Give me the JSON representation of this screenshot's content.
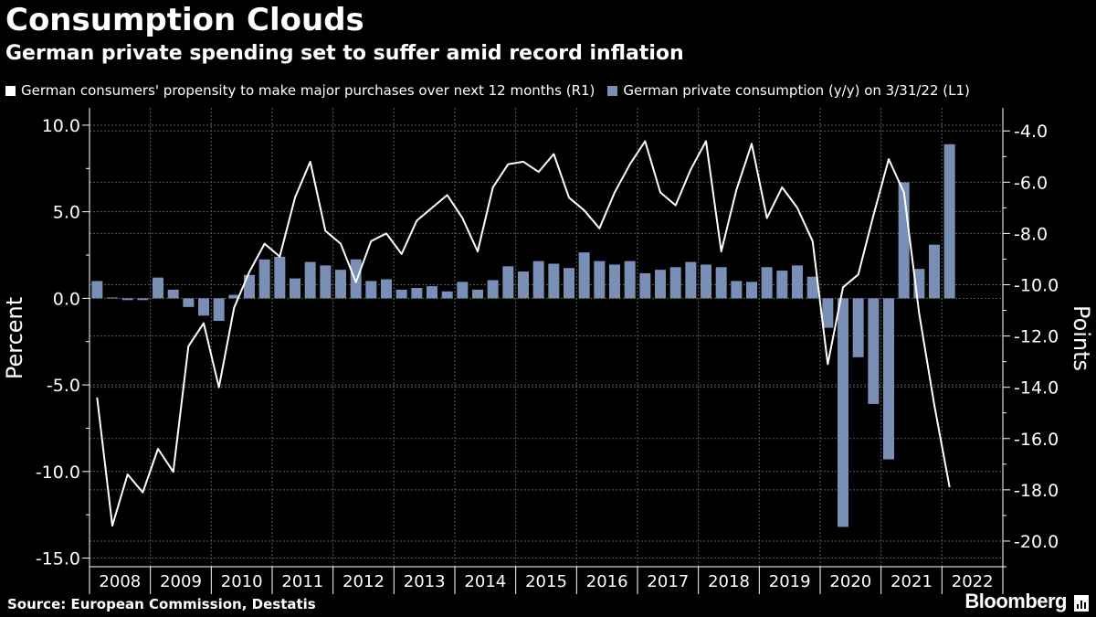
{
  "title": "Consumption Clouds",
  "subtitle": "German private spending set to suffer amid record inflation",
  "legend": [
    {
      "label": "German consumers' propensity to make major purchases over next 12 months (R1)",
      "color": "#ffffff"
    },
    {
      "label": "German private consumption (y/y) on 3/31/22 (L1)",
      "color": "#7a8fb5"
    }
  ],
  "source": "Source: European Commission, Destatis",
  "brand": "Bloomberg",
  "colors": {
    "bar": "#7a8fb5",
    "line": "#ffffff",
    "grid": "#5a5a5a",
    "background": "#000000"
  },
  "chart_data": {
    "type": "bar+line",
    "years": [
      "2008",
      "2009",
      "2010",
      "2011",
      "2012",
      "2013",
      "2014",
      "2015",
      "2016",
      "2017",
      "2018",
      "2019",
      "2020",
      "2021",
      "2022"
    ],
    "left_axis": {
      "label": "Percent",
      "ylim": [
        -15.5,
        11
      ],
      "ticks": [
        10.0,
        5.0,
        0.0,
        -5.0,
        -10.0,
        -15.0
      ],
      "tick_labels": [
        "10.0",
        "5.0",
        "0.0",
        "-5.0",
        "-10.0",
        "-15.0"
      ]
    },
    "right_axis": {
      "label": "Points",
      "ylim": [
        -21,
        -3.1
      ],
      "ticks": [
        -4,
        -6,
        -8,
        -10,
        -12,
        -14,
        -16,
        -18,
        -20
      ],
      "tick_labels": [
        "-4.0",
        "-6.0",
        "-8.0",
        "-10.0",
        "-12.0",
        "-14.0",
        "-16.0",
        "-18.0",
        "-20.0"
      ]
    },
    "series": [
      {
        "name": "German private consumption (y/y) on 3/31/22 (L1)",
        "axis": "left",
        "kind": "bar",
        "start": "2008Q1",
        "values": [
          1.0,
          0.05,
          -0.1,
          -0.1,
          1.2,
          0.5,
          -0.5,
          -1.0,
          -1.3,
          0.2,
          1.35,
          2.25,
          2.4,
          1.15,
          2.1,
          1.9,
          1.65,
          2.25,
          1.0,
          1.1,
          0.5,
          0.6,
          0.7,
          0.4,
          0.95,
          0.5,
          1.05,
          1.85,
          1.55,
          2.15,
          2.0,
          1.75,
          2.65,
          2.15,
          1.95,
          2.15,
          1.45,
          1.65,
          1.8,
          2.1,
          1.95,
          1.8,
          1.0,
          0.95,
          1.8,
          1.6,
          1.9,
          1.25,
          -1.7,
          -13.2,
          -3.4,
          -6.1,
          -9.3,
          6.7,
          1.7,
          3.1,
          8.9
        ]
      },
      {
        "name": "German consumers' propensity to make major purchases over next 12 months (R1)",
        "axis": "right",
        "kind": "line",
        "start": "2008Q1",
        "values": [
          -14.4,
          -19.4,
          -17.4,
          -18.1,
          -16.4,
          -17.3,
          -12.4,
          -11.5,
          -14.0,
          -10.9,
          -9.5,
          -8.4,
          -8.9,
          -6.6,
          -5.2,
          -7.9,
          -8.4,
          -9.9,
          -8.3,
          -8.0,
          -8.8,
          -7.5,
          -7.0,
          -6.5,
          -7.4,
          -8.7,
          -6.2,
          -5.3,
          -5.2,
          -5.6,
          -4.9,
          -6.6,
          -7.1,
          -7.8,
          -6.4,
          -5.3,
          -4.4,
          -6.4,
          -6.9,
          -5.5,
          -4.4,
          -8.7,
          -6.3,
          -4.5,
          -7.4,
          -6.2,
          -7.0,
          -8.3,
          -13.1,
          -10.1,
          -9.6,
          -7.3,
          -5.1,
          -6.4,
          -11.1,
          -14.7,
          -17.9
        ]
      }
    ]
  }
}
